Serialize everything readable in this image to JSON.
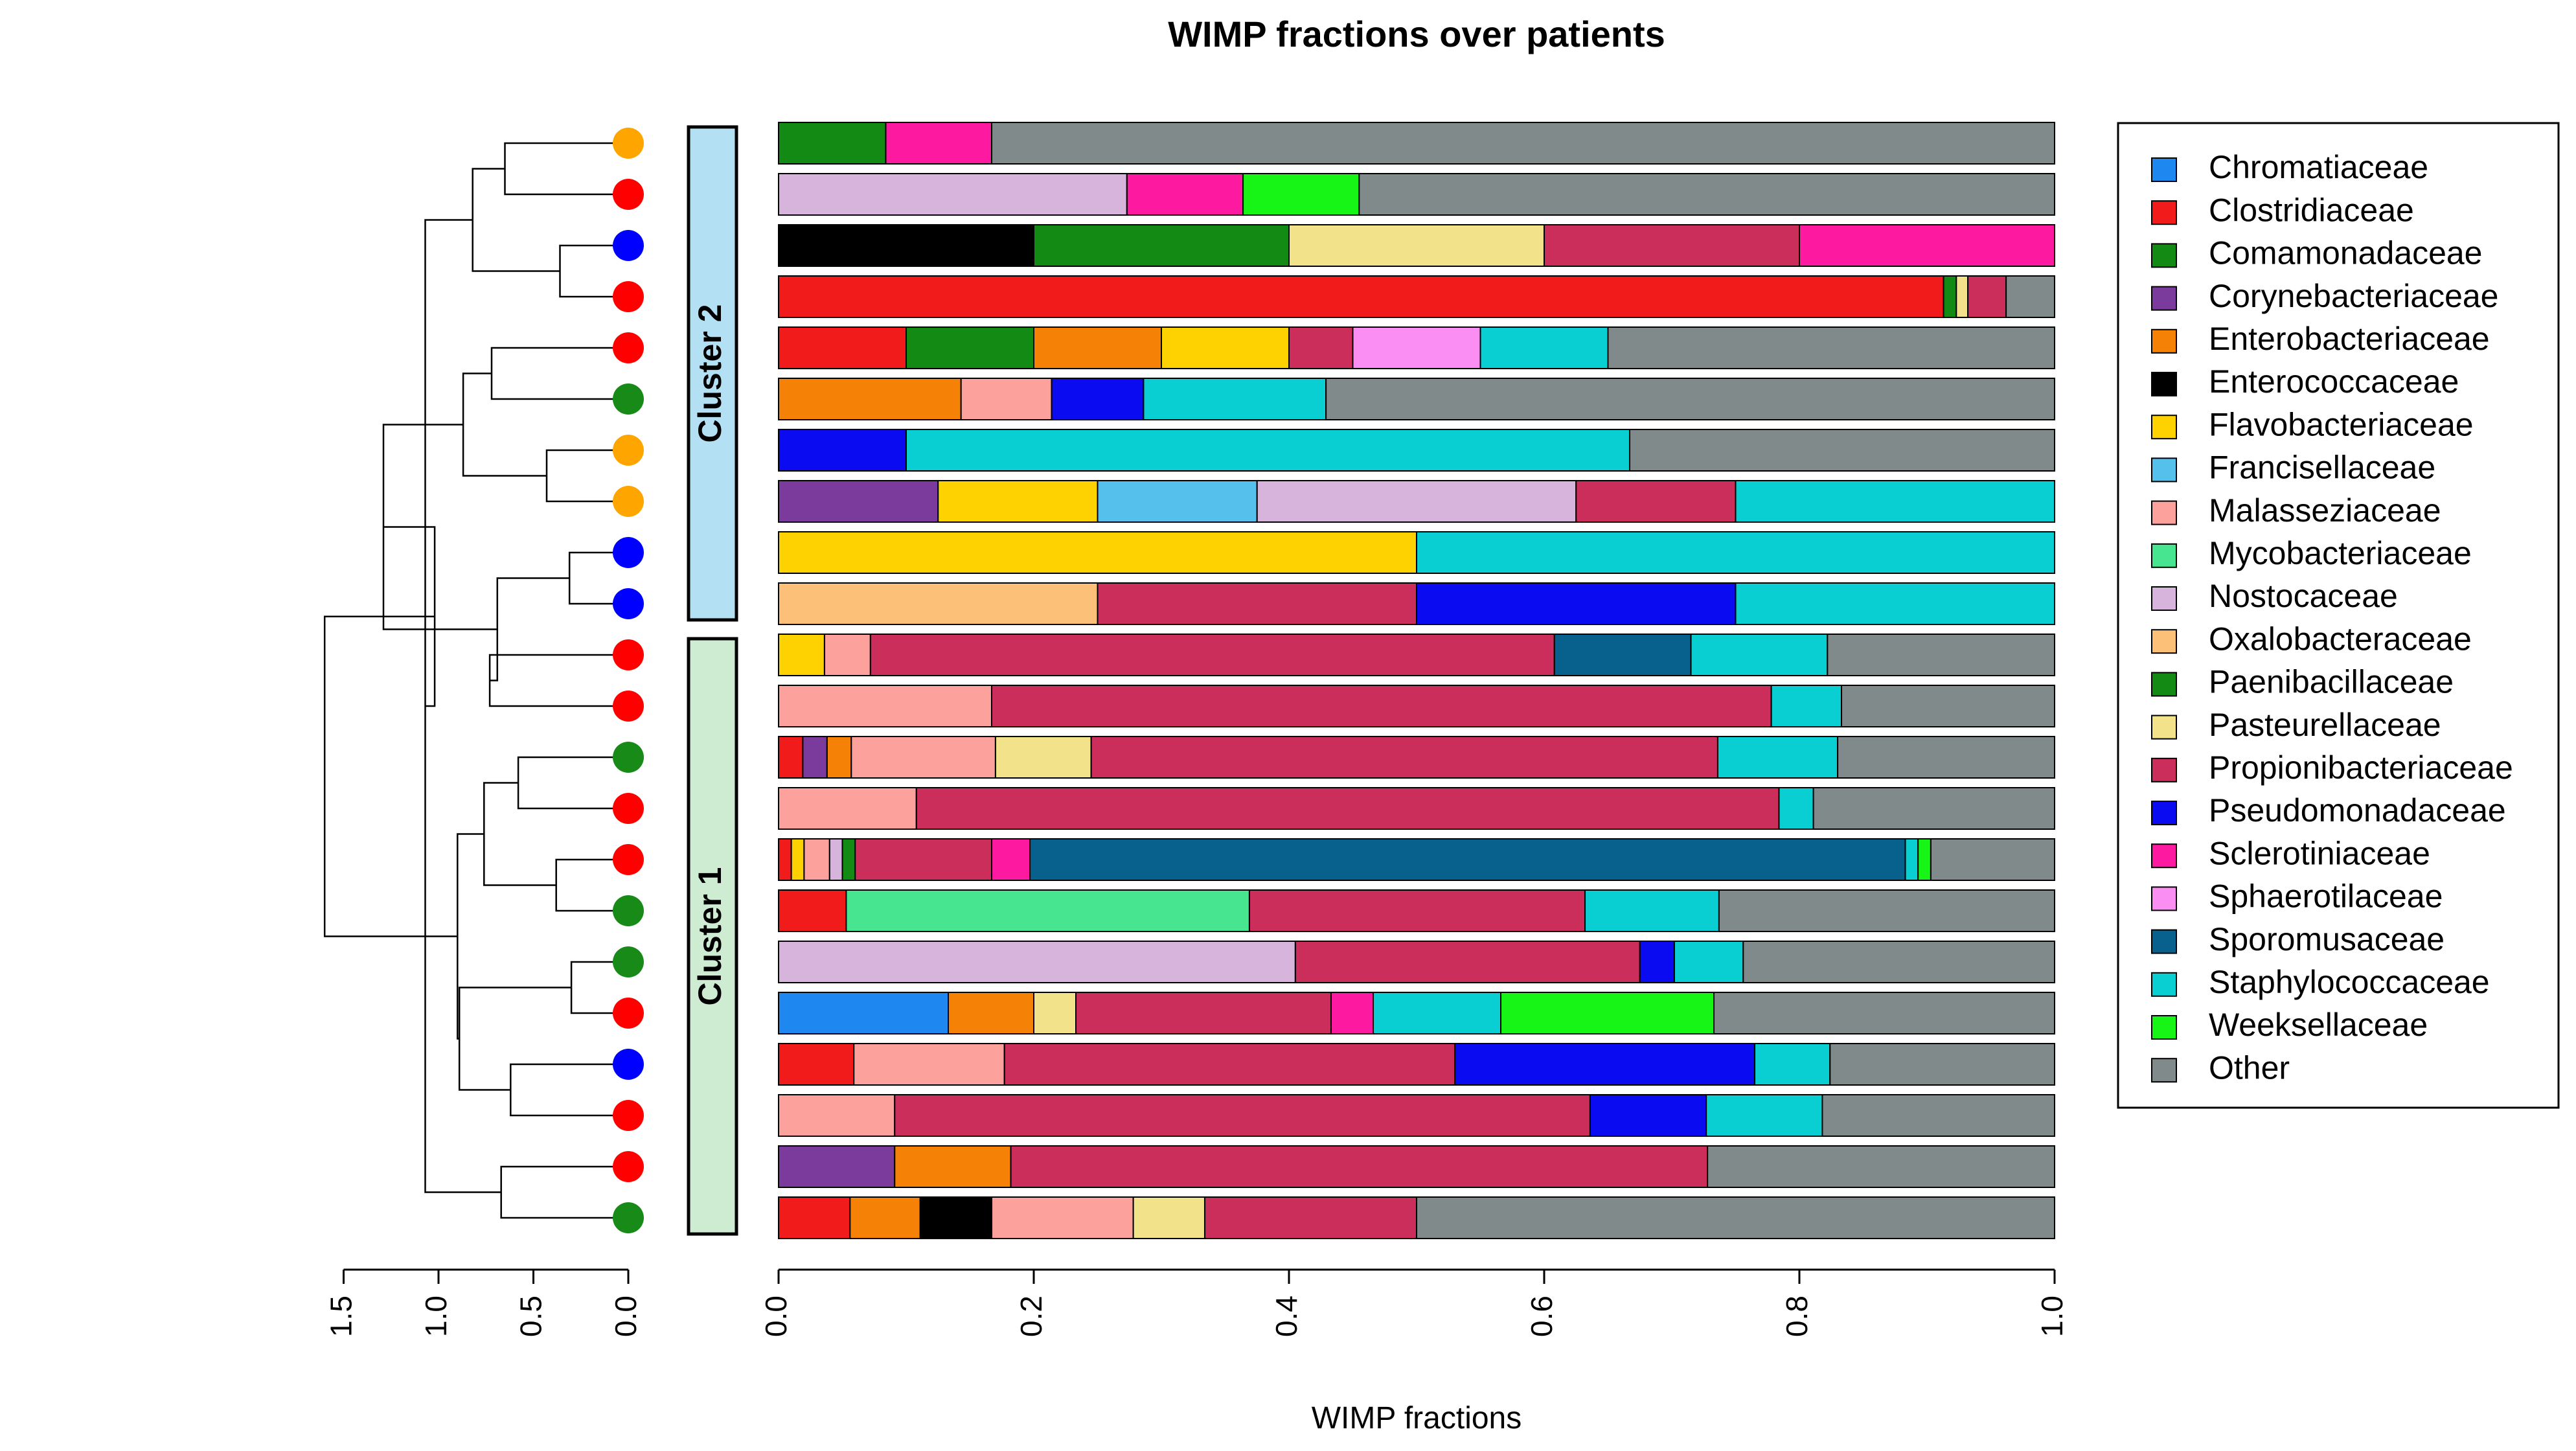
{
  "chart_data": {
    "type": "bar",
    "orientation": "horizontal-stacked",
    "title": "WIMP fractions over patients",
    "xlabel": "WIMP fractions",
    "xlim": [
      0,
      1
    ],
    "x_ticks": [
      "0.0",
      "0.2",
      "0.4",
      "0.6",
      "0.8",
      "1.0"
    ],
    "dendrogram_ticks": [
      "1.5",
      "1.0",
      "0.5",
      "0.0"
    ],
    "clusters": [
      {
        "label": "Cluster 2",
        "color": "#b3e0f2",
        "rows": [
          0,
          9
        ]
      },
      {
        "label": "Cluster 1",
        "color": "#cdecd2",
        "rows": [
          10,
          21
        ]
      }
    ],
    "categories": [
      {
        "name": "Chromatiaceae",
        "color": "#1e88f0"
      },
      {
        "name": "Clostridiaceae",
        "color": "#f21b1b"
      },
      {
        "name": "Comamonadaceae",
        "color": "#138a13"
      },
      {
        "name": "Corynebacteriaceae",
        "color": "#7a3b9c"
      },
      {
        "name": "Enterobacteriaceae",
        "color": "#f58107"
      },
      {
        "name": "Enterococcaceae",
        "color": "#000000"
      },
      {
        "name": "Flavobacteriaceae",
        "color": "#fdd200"
      },
      {
        "name": "Francisellaceae",
        "color": "#56c0ec"
      },
      {
        "name": "Malasseziaceae",
        "color": "#fca19c"
      },
      {
        "name": "Mycobacteriaceae",
        "color": "#47e58f"
      },
      {
        "name": "Nostocaceae",
        "color": "#d6b4dc"
      },
      {
        "name": "Oxalobacteraceae",
        "color": "#fdc078"
      },
      {
        "name": "Paenibacillaceae",
        "color": "#138a13"
      },
      {
        "name": "Pasteurellaceae",
        "color": "#f2e38a"
      },
      {
        "name": "Propionibacteriaceae",
        "color": "#cc2e5c"
      },
      {
        "name": "Pseudomonadaceae",
        "color": "#0b0bf2"
      },
      {
        "name": "Sclerotiniaceae",
        "color": "#fd1aa0"
      },
      {
        "name": "Sphaerotilaceae",
        "color": "#fa8ef2"
      },
      {
        "name": "Sporomusaceae",
        "color": "#08608c"
      },
      {
        "name": "Staphylococcaceae",
        "color": "#09cfd2"
      },
      {
        "name": "Weeksellaceae",
        "color": "#17f517"
      },
      {
        "name": "Other",
        "color": "#808a8a"
      }
    ],
    "rows": [
      {
        "dot": "orange",
        "segments": [
          [
            "Paenibacillaceae",
            0.084
          ],
          [
            "Sclerotiniaceae",
            0.083
          ],
          [
            "Other",
            0.833
          ]
        ]
      },
      {
        "dot": "red",
        "segments": [
          [
            "Nostocaceae",
            0.273
          ],
          [
            "Sclerotiniaceae",
            0.091
          ],
          [
            "Weeksellaceae",
            0.091
          ],
          [
            "Other",
            0.545
          ]
        ]
      },
      {
        "dot": "blue",
        "segments": [
          [
            "Enterococcaceae",
            0.2
          ],
          [
            "Paenibacillaceae",
            0.2
          ],
          [
            "Pasteurellaceae",
            0.2
          ],
          [
            "Propionibacteriaceae",
            0.2
          ],
          [
            "Sclerotiniaceae",
            0.2
          ]
        ]
      },
      {
        "dot": "red",
        "segments": [
          [
            "Clostridiaceae",
            0.913
          ],
          [
            "Paenibacillaceae",
            0.01
          ],
          [
            "Pasteurellaceae",
            0.009
          ],
          [
            "Propionibacteriaceae",
            0.03
          ],
          [
            "Other",
            0.038
          ]
        ]
      },
      {
        "dot": "red",
        "segments": [
          [
            "Clostridiaceae",
            0.1
          ],
          [
            "Paenibacillaceae",
            0.1
          ],
          [
            "Enterobacteriaceae",
            0.1
          ],
          [
            "Flavobacteriaceae",
            0.1
          ],
          [
            "Propionibacteriaceae",
            0.05
          ],
          [
            "Sphaerotilaceae",
            0.1
          ],
          [
            "Staphylococcaceae",
            0.1
          ],
          [
            "Other",
            0.35
          ]
        ]
      },
      {
        "dot": "green",
        "segments": [
          [
            "Enterobacteriaceae",
            0.143
          ],
          [
            "Malasseziaceae",
            0.071
          ],
          [
            "Pseudomonadaceae",
            0.072
          ],
          [
            "Staphylococcaceae",
            0.143
          ],
          [
            "Other",
            0.571
          ]
        ]
      },
      {
        "dot": "orange",
        "segments": [
          [
            "Pseudomonadaceae",
            0.1
          ],
          [
            "Staphylococcaceae",
            0.567
          ],
          [
            "Other",
            0.333
          ]
        ]
      },
      {
        "dot": "orange",
        "segments": [
          [
            "Corynebacteriaceae",
            0.125
          ],
          [
            "Flavobacteriaceae",
            0.125
          ],
          [
            "Francisellaceae",
            0.125
          ],
          [
            "Nostocaceae",
            0.25
          ],
          [
            "Propionibacteriaceae",
            0.125
          ],
          [
            "Staphylococcaceae",
            0.25
          ]
        ]
      },
      {
        "dot": "blue",
        "segments": [
          [
            "Flavobacteriaceae",
            0.5
          ],
          [
            "Staphylococcaceae",
            0.5
          ]
        ]
      },
      {
        "dot": "blue",
        "segments": [
          [
            "Oxalobacteraceae",
            0.25
          ],
          [
            "Propionibacteriaceae",
            0.25
          ],
          [
            "Pseudomonadaceae",
            0.25
          ],
          [
            "Staphylococcaceae",
            0.25
          ]
        ]
      },
      {
        "dot": "red",
        "segments": [
          [
            "Flavobacteriaceae",
            0.036
          ],
          [
            "Malasseziaceae",
            0.036
          ],
          [
            "Propionibacteriaceae",
            0.536
          ],
          [
            "Sporomusaceae",
            0.107
          ],
          [
            "Staphylococcaceae",
            0.107
          ],
          [
            "Other",
            0.178
          ]
        ]
      },
      {
        "dot": "red",
        "segments": [
          [
            "Malasseziaceae",
            0.167
          ],
          [
            "Propionibacteriaceae",
            0.611
          ],
          [
            "Staphylococcaceae",
            0.055
          ],
          [
            "Other",
            0.167
          ]
        ]
      },
      {
        "dot": "green",
        "segments": [
          [
            "Clostridiaceae",
            0.019
          ],
          [
            "Corynebacteriaceae",
            0.019
          ],
          [
            "Enterobacteriaceae",
            0.019
          ],
          [
            "Malasseziaceae",
            0.113
          ],
          [
            "Pasteurellaceae",
            0.075
          ],
          [
            "Propionibacteriaceae",
            0.491
          ],
          [
            "Staphylococcaceae",
            0.094
          ],
          [
            "Other",
            0.17
          ]
        ]
      },
      {
        "dot": "red",
        "segments": [
          [
            "Malasseziaceae",
            0.108
          ],
          [
            "Propionibacteriaceae",
            0.676
          ],
          [
            "Staphylococcaceae",
            0.027
          ],
          [
            "Other",
            0.189
          ]
        ]
      },
      {
        "dot": "red",
        "segments": [
          [
            "Clostridiaceae",
            0.01
          ],
          [
            "Flavobacteriaceae",
            0.01
          ],
          [
            "Malasseziaceae",
            0.02
          ],
          [
            "Nostocaceae",
            0.01
          ],
          [
            "Paenibacillaceae",
            0.01
          ],
          [
            "Propionibacteriaceae",
            0.107
          ],
          [
            "Sclerotiniaceae",
            0.03
          ],
          [
            "Sporomusaceae",
            0.686
          ],
          [
            "Staphylococcaceae",
            0.01
          ],
          [
            "Weeksellaceae",
            0.01
          ],
          [
            "Other",
            0.097
          ]
        ]
      },
      {
        "dot": "green",
        "segments": [
          [
            "Clostridiaceae",
            0.053
          ],
          [
            "Mycobacteriaceae",
            0.316
          ],
          [
            "Propionibacteriaceae",
            0.263
          ],
          [
            "Staphylococcaceae",
            0.105
          ],
          [
            "Other",
            0.263
          ]
        ]
      },
      {
        "dot": "green",
        "segments": [
          [
            "Nostocaceae",
            0.405
          ],
          [
            "Propionibacteriaceae",
            0.27
          ],
          [
            "Pseudomonadaceae",
            0.027
          ],
          [
            "Staphylococcaceae",
            0.054
          ],
          [
            "Other",
            0.244
          ]
        ]
      },
      {
        "dot": "red",
        "segments": [
          [
            "Chromatiaceae",
            0.133
          ],
          [
            "Enterobacteriaceae",
            0.067
          ],
          [
            "Pasteurellaceae",
            0.033
          ],
          [
            "Propionibacteriaceae",
            0.2
          ],
          [
            "Sclerotiniaceae",
            0.033
          ],
          [
            "Staphylococcaceae",
            0.1
          ],
          [
            "Weeksellaceae",
            0.167
          ],
          [
            "Other",
            0.267
          ]
        ]
      },
      {
        "dot": "blue",
        "segments": [
          [
            "Clostridiaceae",
            0.059
          ],
          [
            "Malasseziaceae",
            0.118
          ],
          [
            "Propionibacteriaceae",
            0.353
          ],
          [
            "Pseudomonadaceae",
            0.235
          ],
          [
            "Staphylococcaceae",
            0.059
          ],
          [
            "Other",
            0.176
          ]
        ]
      },
      {
        "dot": "red",
        "segments": [
          [
            "Malasseziaceae",
            0.091
          ],
          [
            "Propionibacteriaceae",
            0.545
          ],
          [
            "Pseudomonadaceae",
            0.091
          ],
          [
            "Staphylococcaceae",
            0.091
          ],
          [
            "Other",
            0.182
          ]
        ]
      },
      {
        "dot": "red",
        "segments": [
          [
            "Corynebacteriaceae",
            0.091
          ],
          [
            "Enterobacteriaceae",
            0.091
          ],
          [
            "Propionibacteriaceae",
            0.546
          ],
          [
            "Other",
            0.272
          ]
        ]
      },
      {
        "dot": "green",
        "segments": [
          [
            "Clostridiaceae",
            0.056
          ],
          [
            "Enterobacteriaceae",
            0.055
          ],
          [
            "Enterococcaceae",
            0.056
          ],
          [
            "Malasseziaceae",
            0.111
          ],
          [
            "Pasteurellaceae",
            0.056
          ],
          [
            "Propionibacteriaceae",
            0.166
          ],
          [
            "Other",
            0.5
          ]
        ]
      }
    ],
    "dendrogram": {
      "merges": [
        [
          0,
          1,
          0.65
        ],
        [
          2,
          3,
          0.36
        ],
        [
          4,
          5,
          0.72
        ],
        [
          6,
          7,
          0.43
        ],
        [
          8,
          9,
          0.31
        ],
        [
          10,
          11,
          0.73
        ],
        [
          12,
          13,
          0.58
        ],
        [
          14,
          15,
          0.38
        ],
        [
          16,
          17,
          0.3
        ],
        [
          18,
          19,
          0.62
        ],
        [
          20,
          21,
          0.67
        ],
        [
          22,
          23,
          0.82
        ],
        [
          24,
          25,
          0.87
        ],
        [
          26,
          27,
          0.69
        ],
        [
          28,
          29,
          0.76
        ],
        [
          30,
          31,
          0.89
        ],
        [
          32,
          33,
          1.07
        ],
        [
          34,
          35,
          1.29
        ],
        [
          36,
          37,
          0.9
        ],
        [
          38,
          39,
          1.02
        ],
        [
          40,
          41,
          1.6
        ]
      ]
    },
    "dot_colors": {
      "orange": "#ffa500",
      "red": "#ff0000",
      "blue": "#0000ff",
      "green": "#178a17"
    }
  }
}
